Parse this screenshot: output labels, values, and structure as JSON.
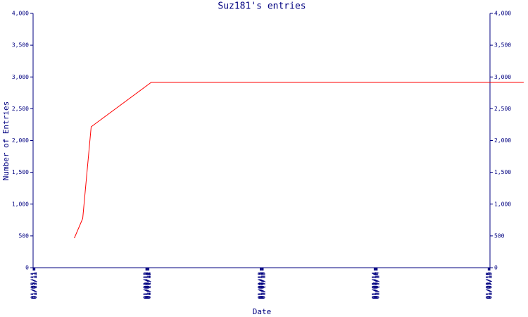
{
  "chart_data": {
    "type": "line",
    "title": "Suz181's entries",
    "x_label": "Date",
    "y_label": "Number of Entries",
    "xticks": [
      "01/05/11",
      "01/07/11",
      "01/09/11",
      "01/11/11",
      "01/01/12",
      "01/03/12",
      "01/05/12",
      "01/07/12",
      "01/09/12",
      "01/11/12",
      "01/01/13",
      "01/03/13",
      "01/05/13",
      "01/07/13",
      "01/09/13",
      "01/11/13",
      "01/01/14",
      "01/03/14",
      "01/05/14",
      "01/07/14",
      "01/09/14",
      "01/11/14",
      "01/01/15",
      "01/03/15",
      "01/05/15",
      "01/07/15"
    ],
    "x": [
      "05/17/11",
      "06/13/11",
      "07/10/11",
      "01/18/12",
      "04/25/15"
    ],
    "series": [
      {
        "name": "entries",
        "color": "#ff0000",
        "values": [
          465,
          775,
          2216,
          2914,
          2914
        ]
      }
    ],
    "ylim": [
      0,
      4000
    ],
    "yticks": [
      0,
      500,
      {
        "value": 1000,
        "label": "1,000"
      },
      {
        "value": 1500,
        "label": "1,500"
      },
      {
        "value": 2000,
        "label": "2,000"
      },
      {
        "value": 2500,
        "label": "2,500"
      },
      {
        "value": 3000,
        "label": "3,000"
      },
      {
        "value": 3500,
        "label": "3,500"
      },
      {
        "value": 4000,
        "label": "4,000"
      }
    ],
    "y2lim": [
      0,
      4000
    ],
    "y2ticks": [
      0,
      500,
      {
        "value": 1000,
        "label": "1,000"
      },
      {
        "value": 1500,
        "label": "1,500"
      },
      {
        "value": 2000,
        "label": "2,000"
      },
      {
        "value": 2500,
        "label": "2,500"
      },
      {
        "value": 3000,
        "label": "3,000"
      },
      {
        "value": 3500,
        "label": "3,500"
      },
      {
        "value": 4000,
        "label": "4,000"
      }
    ],
    "axis_color": "#000080"
  }
}
